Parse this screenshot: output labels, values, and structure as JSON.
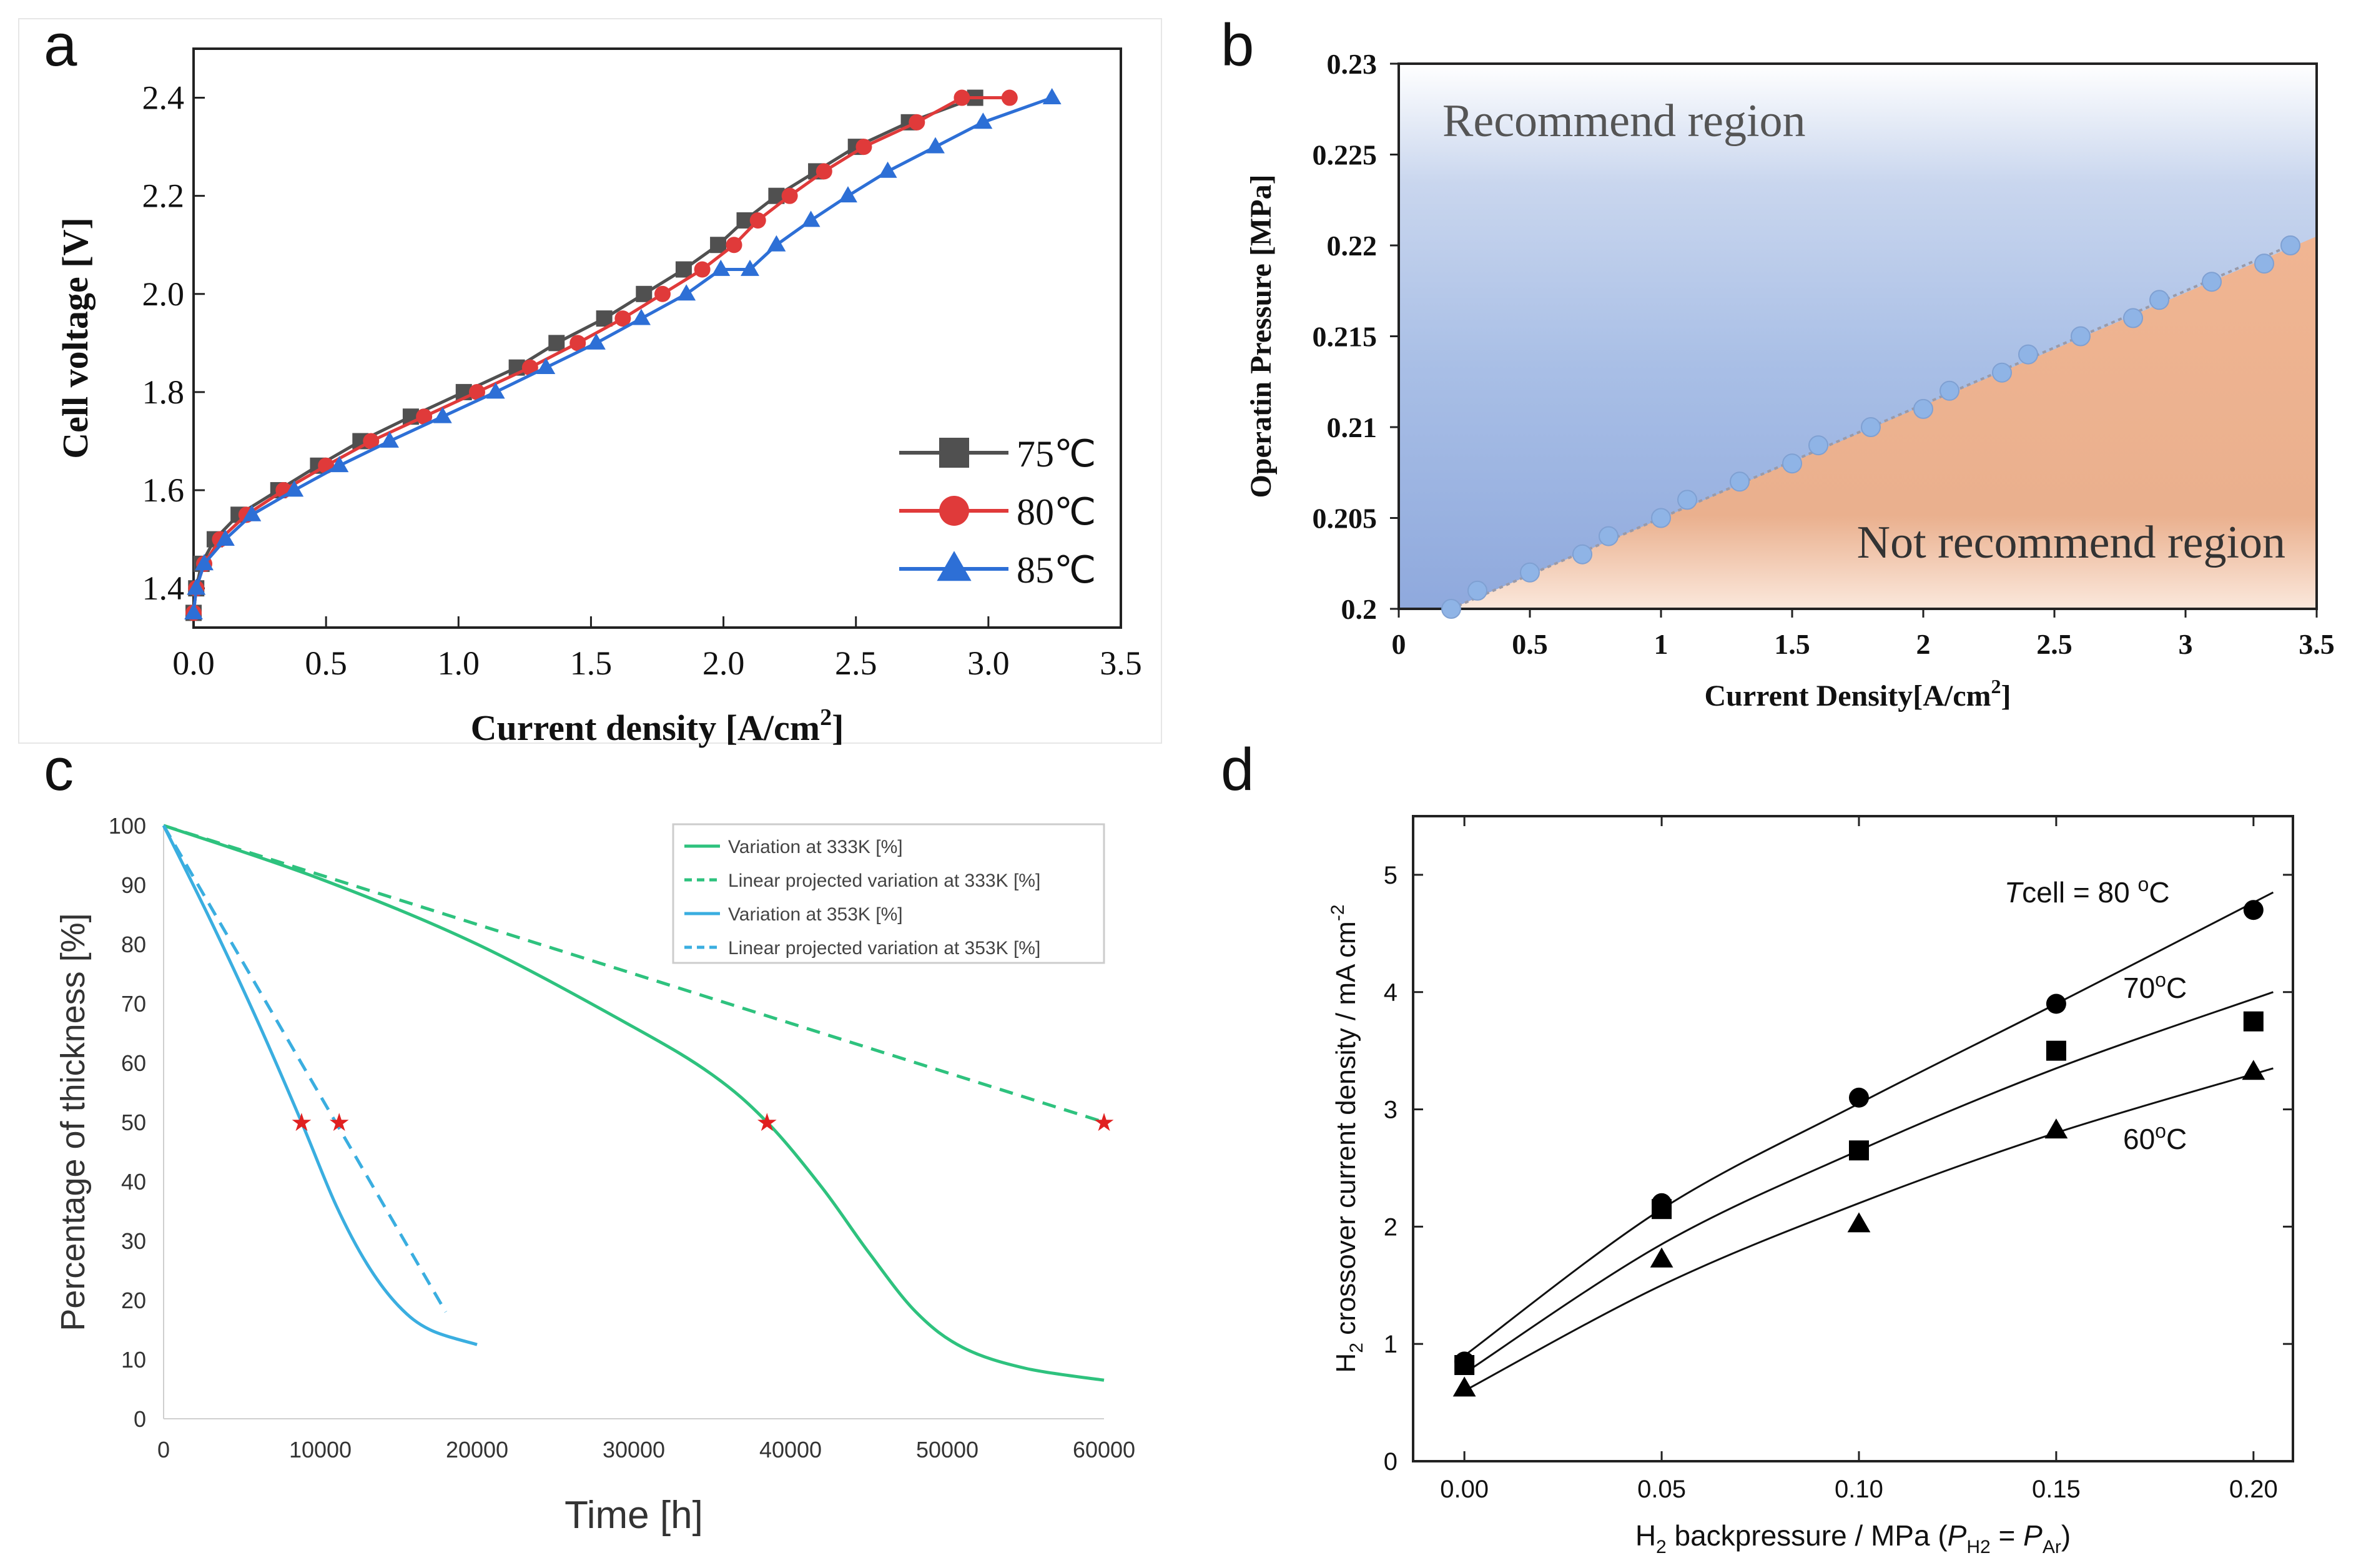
{
  "panels": {
    "a": "a",
    "b": "b",
    "c": "c",
    "d": "d"
  },
  "chart_data": [
    {
      "id": "a",
      "type": "line",
      "title": "",
      "xlabel": "Current density [A/cm",
      "xlabel_sup": "2",
      "xlabel_end": "]",
      "ylabel": "Cell voltage [V]",
      "xlim": [
        0,
        3.5
      ],
      "ylim": [
        1.32,
        2.5
      ],
      "xticks": [
        "0.0",
        "0.5",
        "1.0",
        "1.5",
        "2.0",
        "2.5",
        "3.0",
        "3.5"
      ],
      "xtick_values": [
        0,
        0.5,
        1.0,
        1.5,
        2.0,
        2.5,
        3.0,
        3.5
      ],
      "yticks": [
        "1.4",
        "1.6",
        "1.8",
        "2.0",
        "2.2",
        "2.4"
      ],
      "ytick_values": [
        1.4,
        1.6,
        1.8,
        2.0,
        2.2,
        2.4
      ],
      "legend_position": "bottom-right",
      "series": [
        {
          "name": "75℃",
          "color": "#505050",
          "marker": "square",
          "x": [
            0,
            0.01,
            0.03,
            0.08,
            0.17,
            0.32,
            0.47,
            0.63,
            0.82,
            1.02,
            1.22,
            1.37,
            1.55,
            1.7,
            1.85,
            1.98,
            2.08,
            2.2,
            2.35,
            2.5,
            2.7,
            2.95
          ],
          "y": [
            1.35,
            1.4,
            1.45,
            1.5,
            1.55,
            1.6,
            1.65,
            1.7,
            1.75,
            1.8,
            1.85,
            1.9,
            1.95,
            2.0,
            2.05,
            2.1,
            2.15,
            2.2,
            2.25,
            2.3,
            2.35,
            2.4
          ]
        },
        {
          "name": "80℃",
          "color": "#e03a3a",
          "marker": "circle",
          "x": [
            0,
            0.01,
            0.04,
            0.1,
            0.2,
            0.34,
            0.5,
            0.67,
            0.87,
            1.07,
            1.27,
            1.45,
            1.62,
            1.77,
            1.92,
            2.04,
            2.13,
            2.25,
            2.38,
            2.53,
            2.73,
            2.9,
            3.08
          ],
          "y": [
            1.35,
            1.4,
            1.45,
            1.5,
            1.55,
            1.6,
            1.65,
            1.7,
            1.75,
            1.8,
            1.85,
            1.9,
            1.95,
            2.0,
            2.05,
            2.1,
            2.15,
            2.2,
            2.25,
            2.3,
            2.35,
            2.4,
            2.4
          ]
        },
        {
          "name": "85℃",
          "color": "#2d6fd6",
          "marker": "triangle",
          "x": [
            0,
            0.01,
            0.04,
            0.12,
            0.22,
            0.38,
            0.55,
            0.74,
            0.94,
            1.14,
            1.33,
            1.52,
            1.69,
            1.86,
            1.99,
            2.1,
            2.2,
            2.33,
            2.47,
            2.62,
            2.8,
            2.98,
            3.24
          ],
          "y": [
            1.35,
            1.4,
            1.45,
            1.5,
            1.55,
            1.6,
            1.65,
            1.7,
            1.75,
            1.8,
            1.85,
            1.9,
            1.95,
            2.0,
            2.05,
            2.05,
            2.1,
            2.15,
            2.2,
            2.25,
            2.3,
            2.35,
            2.4
          ]
        }
      ]
    },
    {
      "id": "b",
      "type": "scatter",
      "title": "",
      "xlabel": "Current Density[A/cm",
      "xlabel_sup": "2",
      "xlabel_end": "]",
      "ylabel": "Operatin Pressure [MPa]",
      "xlim": [
        0,
        3.5
      ],
      "ylim": [
        0.2,
        0.23
      ],
      "xticks": [
        "0",
        "0.5",
        "1",
        "1.5",
        "2",
        "2.5",
        "3",
        "3.5"
      ],
      "xtick_values": [
        0,
        0.5,
        1,
        1.5,
        2,
        2.5,
        3,
        3.5
      ],
      "yticks": [
        "0.2",
        "0.205",
        "0.21",
        "0.215",
        "0.22",
        "0.225",
        "0.23"
      ],
      "ytick_values": [
        0.2,
        0.205,
        0.21,
        0.215,
        0.22,
        0.225,
        0.23
      ],
      "annotations": [
        "Recommend  region",
        "Not recommend region"
      ],
      "colors": {
        "recommend": "#7f9fd6",
        "not_recommend": "#e8a57f",
        "point": "#8fb4e6"
      },
      "series": [
        {
          "name": "boundary",
          "x": [
            0.2,
            0.3,
            0.5,
            0.7,
            0.8,
            1.0,
            1.1,
            1.3,
            1.5,
            1.6,
            1.8,
            2.0,
            2.1,
            2.3,
            2.4,
            2.6,
            2.8,
            2.9,
            3.1,
            3.3,
            3.4
          ],
          "y": [
            0.2,
            0.201,
            0.202,
            0.203,
            0.204,
            0.205,
            0.206,
            0.207,
            0.208,
            0.209,
            0.21,
            0.211,
            0.212,
            0.213,
            0.214,
            0.215,
            0.216,
            0.217,
            0.218,
            0.219,
            0.22
          ]
        }
      ]
    },
    {
      "id": "c",
      "type": "line",
      "title": "",
      "xlabel": "Time [h]",
      "ylabel": "Percentage of thickness [%]",
      "xlim": [
        0,
        60000
      ],
      "ylim": [
        0,
        100
      ],
      "xticks": [
        "0",
        "10000",
        "20000",
        "30000",
        "40000",
        "50000",
        "60000"
      ],
      "xtick_values": [
        0,
        10000,
        20000,
        30000,
        40000,
        50000,
        60000
      ],
      "yticks": [
        "0",
        "10",
        "20",
        "30",
        "40",
        "50",
        "60",
        "70",
        "80",
        "90",
        "100"
      ],
      "ytick_values": [
        0,
        10,
        20,
        30,
        40,
        50,
        60,
        70,
        80,
        90,
        100
      ],
      "legend_position": "top-right",
      "series": [
        {
          "name": "Variation at 333K [%]",
          "color": "#2ec27e",
          "dash": false,
          "x": [
            0,
            10000,
            20000,
            30000,
            35000,
            38500,
            42000,
            45000,
            48000,
            51000,
            55000,
            60000
          ],
          "y": [
            100,
            91,
            80,
            66,
            58,
            50,
            39,
            28,
            18,
            12,
            8.5,
            6.5
          ]
        },
        {
          "name": "Linear projected variation at 333K [%]",
          "color": "#2ec27e",
          "dash": true,
          "x": [
            0,
            60000
          ],
          "y": [
            100,
            50
          ]
        },
        {
          "name": "Variation at 353K [%]",
          "color": "#3aaee0",
          "dash": false,
          "x": [
            0,
            3000,
            6000,
            8800,
            11000,
            13000,
            15000,
            17000,
            20000
          ],
          "y": [
            100,
            84,
            67,
            50,
            36,
            26,
            19,
            15,
            12.5
          ]
        },
        {
          "name": "Linear projected variation at 353K [%]",
          "color": "#3aaee0",
          "dash": true,
          "x": [
            0,
            18000
          ],
          "y": [
            100,
            18
          ]
        }
      ],
      "markers": {
        "color": "#e02020",
        "points": [
          [
            8800,
            50
          ],
          [
            11200,
            50
          ],
          [
            38500,
            50
          ],
          [
            60000,
            50
          ]
        ]
      }
    },
    {
      "id": "d",
      "type": "scatter",
      "title": "",
      "xlabel": "H",
      "xlabel_sub": "2",
      "xlabel_rest": " backpressure / MPa (",
      "xlabel_p": "P",
      "xlabel_psub1": "H2",
      "xlabel_eq": " = ",
      "xlabel_psub2": "Ar",
      "xlabel_close": ")",
      "ylabel": "H",
      "ylabel_sub": "2",
      "ylabel_rest": " crossover current density / mA cm",
      "ylabel_sup": "-2",
      "xlim": [
        -0.013,
        0.21
      ],
      "ylim": [
        0,
        5.5
      ],
      "xticks": [
        "0.00",
        "0.05",
        "0.10",
        "0.15",
        "0.20"
      ],
      "xtick_values": [
        0,
        0.05,
        0.1,
        0.15,
        0.2
      ],
      "yticks": [
        "0",
        "1",
        "2",
        "3",
        "4",
        "5"
      ],
      "ytick_values": [
        0,
        1,
        2,
        3,
        4,
        5
      ],
      "annotations": [
        {
          "text_italic": "T",
          "text": "cell = 80 ",
          "sup": "o",
          "end": "C"
        },
        {
          "text": "70",
          "sup": "o",
          "end": "C"
        },
        {
          "text": "60",
          "sup": "o",
          "end": "C"
        }
      ],
      "series": [
        {
          "name": "80 °C",
          "marker": "circle",
          "x": [
            0,
            0.05,
            0.1,
            0.15,
            0.2
          ],
          "y": [
            0.85,
            2.2,
            3.1,
            3.9,
            4.7
          ],
          "fit": [
            [
              0,
              0.9
            ],
            [
              0.05,
              2.15
            ],
            [
              0.1,
              3.05
            ],
            [
              0.15,
              3.9
            ],
            [
              0.205,
              4.85
            ]
          ]
        },
        {
          "name": "70 °C",
          "marker": "square",
          "x": [
            0,
            0.05,
            0.1,
            0.15,
            0.2
          ],
          "y": [
            0.82,
            2.15,
            2.65,
            3.5,
            3.75
          ],
          "fit": [
            [
              0,
              0.75
            ],
            [
              0.05,
              1.85
            ],
            [
              0.1,
              2.65
            ],
            [
              0.15,
              3.35
            ],
            [
              0.205,
              4.0
            ]
          ]
        },
        {
          "name": "60 °C",
          "marker": "triangle",
          "x": [
            0,
            0.05,
            0.1,
            0.15,
            0.2
          ],
          "y": [
            0.62,
            1.72,
            2.02,
            2.82,
            3.32
          ],
          "fit": [
            [
              0,
              0.6
            ],
            [
              0.05,
              1.5
            ],
            [
              0.1,
              2.2
            ],
            [
              0.15,
              2.8
            ],
            [
              0.205,
              3.35
            ]
          ]
        }
      ]
    }
  ]
}
